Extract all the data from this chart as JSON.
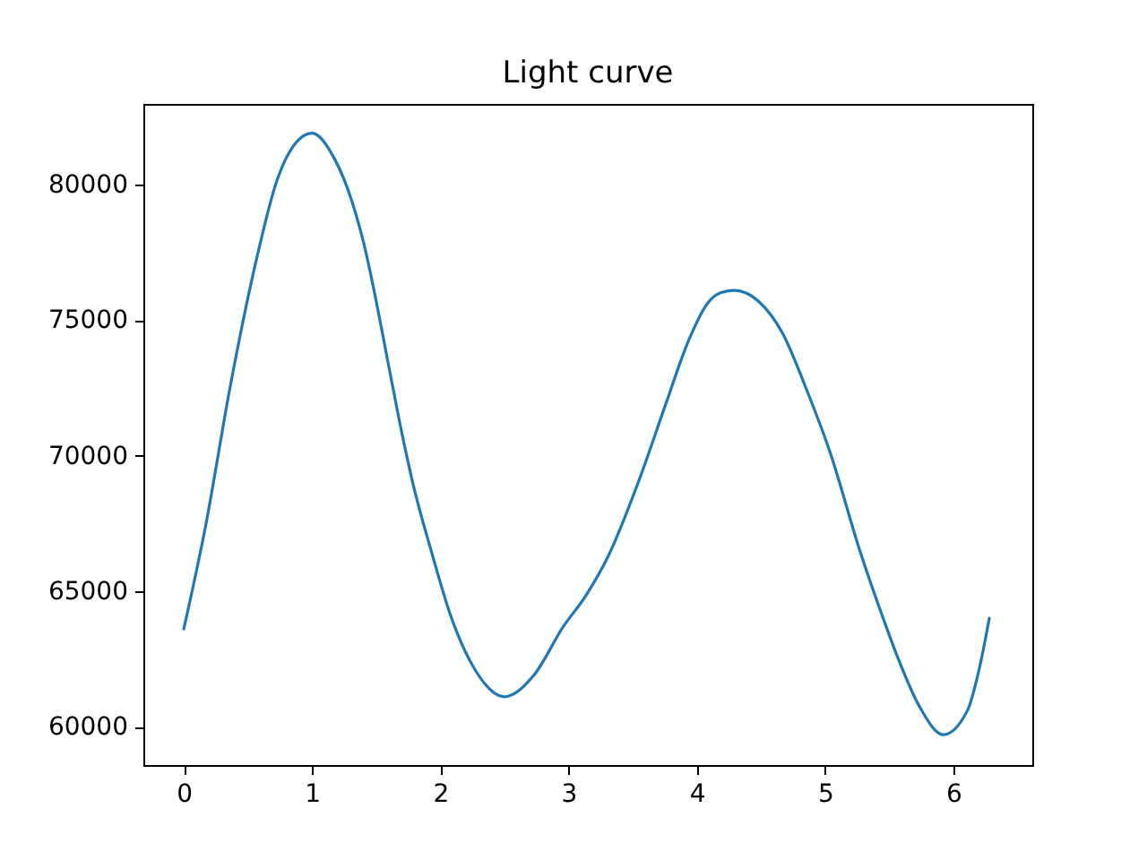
{
  "chart_data": {
    "type": "line",
    "title": "Light curve",
    "x": [
      0,
      0.17,
      0.36,
      0.55,
      0.73,
      0.8,
      1.0,
      1.17,
      1.31,
      1.41,
      1.5,
      1.59,
      1.68,
      1.78,
      1.94,
      2.08,
      2.27,
      2.5,
      2.73,
      2.96,
      3.13,
      3.31,
      3.55,
      3.75,
      3.94,
      4.08,
      4.18,
      4.29,
      4.48,
      4.67,
      4.85,
      5.04,
      5.27,
      5.46,
      5.57,
      5.74,
      5.92,
      6.11,
      6.2,
      6.28
    ],
    "series": [
      {
        "color": "#1f77b4",
        "values": [
          63600,
          67400,
          72500,
          76900,
          80200,
          81000,
          81900,
          81000,
          79400,
          77700,
          75700,
          73500,
          71300,
          69100,
          66300,
          64100,
          62100,
          61100,
          61900,
          63700,
          64800,
          66300,
          69100,
          71800,
          74300,
          75600,
          76000,
          76100,
          75700,
          74500,
          72500,
          70100,
          66500,
          63900,
          62500,
          60700,
          59700,
          60600,
          62100,
          64000
        ]
      }
    ],
    "xlim": [
      -0.315,
      6.615
    ],
    "ylim": [
      58580,
      82980
    ],
    "xticks": [
      0,
      1,
      2,
      3,
      4,
      5,
      6
    ],
    "yticks": [
      60000,
      65000,
      70000,
      75000,
      80000
    ]
  }
}
